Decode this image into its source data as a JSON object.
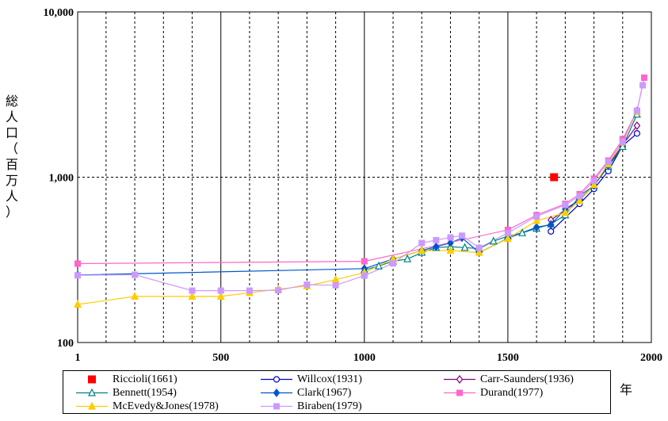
{
  "chart_data": {
    "type": "line",
    "title": "",
    "xlabel": "年",
    "ylabel": "総人口（百万人）",
    "yscale": "log",
    "xlim": [
      1,
      2000
    ],
    "ylim": [
      100,
      10000
    ],
    "x_ticks": [
      {
        "value": 1,
        "label": "1"
      },
      {
        "value": 500,
        "label": "500"
      },
      {
        "value": 1000,
        "label": "1000"
      },
      {
        "value": 1500,
        "label": "1500"
      },
      {
        "value": 2000,
        "label": "2000"
      }
    ],
    "y_ticks": [
      {
        "value": 100,
        "label": "100"
      },
      {
        "value": 1000,
        "label": "1,000"
      },
      {
        "value": 10000,
        "label": "10,000"
      }
    ],
    "grid": true,
    "legend_position": "bottom",
    "series": [
      {
        "name": "Riccioli(1661)",
        "color": "#ff0000",
        "marker": "square-filled",
        "line": false,
        "points": [
          [
            1661,
            1000
          ]
        ]
      },
      {
        "name": "Willcox(1931)",
        "color": "#0000cc",
        "marker": "circle-open",
        "points": [
          [
            1650,
            470
          ],
          [
            1750,
            690
          ],
          [
            1800,
            850
          ],
          [
            1850,
            1090
          ],
          [
            1900,
            1550
          ],
          [
            1950,
            1840
          ]
        ]
      },
      {
        "name": "Carr-Saunders(1936)",
        "color": "#800080",
        "marker": "diamond-open",
        "points": [
          [
            1650,
            550
          ],
          [
            1750,
            730
          ],
          [
            1800,
            900
          ],
          [
            1850,
            1170
          ],
          [
            1900,
            1570
          ],
          [
            1950,
            2050
          ]
        ]
      },
      {
        "name": "Bennett(1954)",
        "color": "#008080",
        "marker": "triangle-open",
        "points": [
          [
            1000,
            275
          ],
          [
            1050,
            290
          ],
          [
            1100,
            310
          ],
          [
            1150,
            320
          ],
          [
            1200,
            350
          ],
          [
            1250,
            375
          ],
          [
            1300,
            380
          ],
          [
            1350,
            375
          ],
          [
            1400,
            370
          ],
          [
            1450,
            410
          ],
          [
            1500,
            440
          ],
          [
            1550,
            460
          ],
          [
            1600,
            490
          ],
          [
            1650,
            520
          ],
          [
            1700,
            590
          ],
          [
            1750,
            770
          ],
          [
            1800,
            890
          ],
          [
            1850,
            1160
          ],
          [
            1900,
            1530
          ],
          [
            1950,
            2400
          ]
        ]
      },
      {
        "name": "Clark(1967)",
        "color": "#0055cc",
        "marker": "diamond-filled",
        "points": [
          [
            1,
            256
          ],
          [
            1000,
            280
          ],
          [
            1100,
            320
          ],
          [
            1200,
            360
          ],
          [
            1250,
            380
          ],
          [
            1300,
            400
          ],
          [
            1340,
            430
          ],
          [
            1400,
            350
          ],
          [
            1500,
            427
          ],
          [
            1600,
            498
          ],
          [
            1650,
            516
          ],
          [
            1700,
            641
          ],
          [
            1750,
            731
          ],
          [
            1800,
            890
          ],
          [
            1850,
            1171
          ],
          [
            1900,
            1668
          ],
          [
            1950,
            2520
          ]
        ]
      },
      {
        "name": "Durand(1977)",
        "color": "#ff66cc",
        "marker": "square-filled",
        "points": [
          [
            1,
            300
          ],
          [
            1000,
            310
          ],
          [
            1500,
            480
          ],
          [
            1600,
            590
          ],
          [
            1700,
            690
          ],
          [
            1750,
            790
          ],
          [
            1800,
            980
          ],
          [
            1850,
            1260
          ],
          [
            1900,
            1700
          ],
          [
            1950,
            2520
          ],
          [
            1975,
            4000
          ]
        ]
      },
      {
        "name": "McEvedy&Jones(1978)",
        "color": "#ffcc00",
        "marker": "triangle-filled",
        "points": [
          [
            1,
            170
          ],
          [
            200,
            190
          ],
          [
            400,
            190
          ],
          [
            500,
            190
          ],
          [
            600,
            200
          ],
          [
            700,
            210
          ],
          [
            800,
            220
          ],
          [
            900,
            240
          ],
          [
            1000,
            265
          ],
          [
            1100,
            320
          ],
          [
            1200,
            360
          ],
          [
            1300,
            360
          ],
          [
            1400,
            350
          ],
          [
            1500,
            425
          ],
          [
            1600,
            545
          ],
          [
            1700,
            610
          ],
          [
            1750,
            720
          ],
          [
            1800,
            900
          ],
          [
            1850,
            1200
          ],
          [
            1900,
            1625
          ],
          [
            1950,
            2500
          ]
        ]
      },
      {
        "name": "Biraben(1979)",
        "color": "#cc99ff",
        "marker": "square-filled",
        "points": [
          [
            1,
            255
          ],
          [
            200,
            257
          ],
          [
            400,
            206
          ],
          [
            500,
            206
          ],
          [
            600,
            206
          ],
          [
            700,
            207
          ],
          [
            800,
            224
          ],
          [
            900,
            222
          ],
          [
            1000,
            254
          ],
          [
            1100,
            301
          ],
          [
            1200,
            400
          ],
          [
            1250,
            416
          ],
          [
            1300,
            432
          ],
          [
            1340,
            443
          ],
          [
            1400,
            374
          ],
          [
            1500,
            460
          ],
          [
            1600,
            579
          ],
          [
            1700,
            679
          ],
          [
            1750,
            770
          ],
          [
            1800,
            954
          ],
          [
            1850,
            1241
          ],
          [
            1900,
            1633
          ],
          [
            1950,
            2525
          ],
          [
            1970,
            3600
          ]
        ]
      }
    ]
  }
}
